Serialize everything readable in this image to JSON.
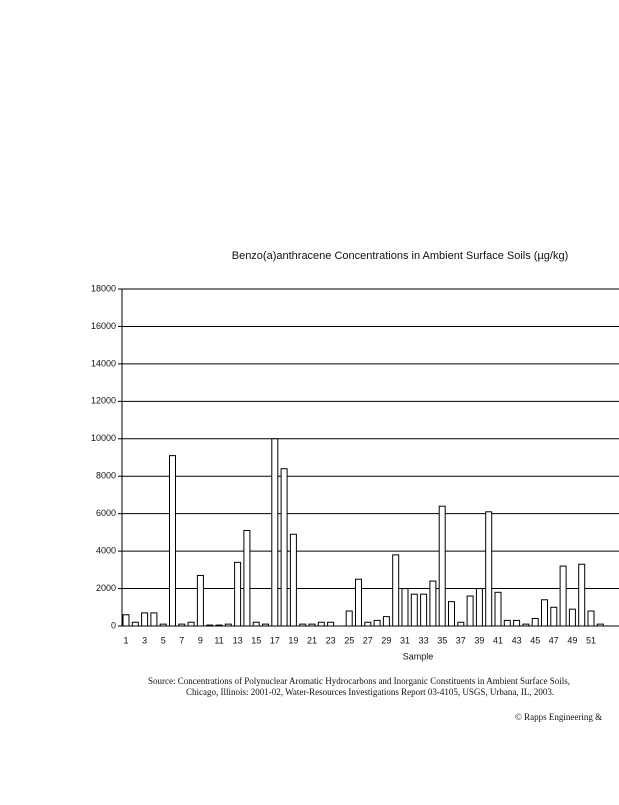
{
  "chart_data": {
    "type": "bar",
    "title": "Benzo(a)anthracene Concentrations in Ambient Surface Soils (µg/kg)",
    "x_label": "Sample",
    "categories": [
      "1",
      null,
      "3",
      null,
      "5",
      null,
      "7",
      null,
      "9",
      null,
      "11",
      null,
      "13",
      null,
      "15",
      null,
      "17",
      null,
      "19",
      null,
      "21",
      null,
      "23",
      null,
      "25",
      null,
      "27",
      null,
      "29",
      null,
      "31",
      null,
      "33",
      null,
      "35",
      null,
      "37",
      null,
      "39",
      null,
      "41",
      null,
      "43",
      null,
      "45",
      null,
      "47",
      null,
      "49",
      null,
      "51",
      null
    ],
    "values": [
      600,
      200,
      700,
      700,
      100,
      9100,
      100,
      200,
      2700,
      50,
      50,
      100,
      3400,
      5100,
      200,
      100,
      10000,
      8400,
      4900,
      100,
      100,
      200,
      200,
      0,
      800,
      2500,
      200,
      300,
      500,
      3800,
      2000,
      1700,
      1700,
      2400,
      6400,
      1300,
      200,
      1600,
      2000,
      6100,
      1800,
      300,
      300,
      100,
      400,
      1400,
      1000,
      3200,
      900,
      3300,
      800,
      100
    ],
    "color": "#ffffff",
    "ylim": [
      0,
      18000
    ],
    "yticks": [
      0,
      2000,
      4000,
      6000,
      8000,
      10000,
      12000,
      14000,
      16000,
      18000
    ],
    "grid": true,
    "source": [
      "Source:  Concentrations of Polynuclear Aromatic Hydrocarbons and Inorganic Constituents in Ambient Surface Soils,",
      "Chicago, Illinois: 2001-02, Water-Resources Investigations Report 03-4105, USGS, Urbana, IL, 2003."
    ],
    "copyright": "© Rapps Engineering &"
  }
}
